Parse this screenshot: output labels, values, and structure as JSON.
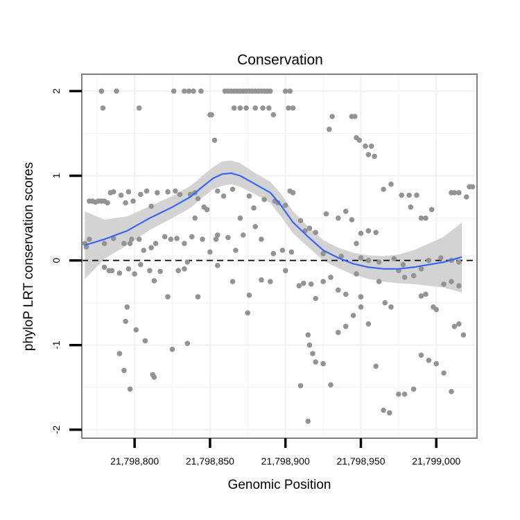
{
  "chart_data": {
    "type": "scatter",
    "title": "Conservation",
    "xlabel": "Genomic Position",
    "ylabel": "phyloP LRT conservation scores",
    "xlim": [
      21798765,
      21799027
    ],
    "ylim": [
      -2.1,
      2.2
    ],
    "x_ticks": [
      {
        "value": 21798800,
        "label": "21,798,800"
      },
      {
        "value": 21798850,
        "label": "21,798,850"
      },
      {
        "value": 21798900,
        "label": "21,798,900"
      },
      {
        "value": 21798950,
        "label": "21,798,950"
      },
      {
        "value": 21799000,
        "label": "21,799,000"
      }
    ],
    "y_ticks": [
      {
        "value": -2,
        "label": "-2"
      },
      {
        "value": -1,
        "label": "-1"
      },
      {
        "value": 0,
        "label": "0"
      },
      {
        "value": 1,
        "label": "1"
      },
      {
        "value": 2,
        "label": "2"
      }
    ],
    "reference_line": {
      "y": 0,
      "style": "dashed"
    },
    "colors": {
      "points": "#939393",
      "smooth": "#3366ff",
      "ribbon": "#d3d3d3",
      "grid": "#f2f2f2",
      "border": "#7f7f7f"
    },
    "points": [
      [
        21798778,
        2.0
      ],
      [
        21798779,
        1.8
      ],
      [
        21798788,
        2.0
      ],
      [
        21798803,
        1.8
      ],
      [
        21798826,
        2.0
      ],
      [
        21798833,
        2.0
      ],
      [
        21798836,
        2.0
      ],
      [
        21798839,
        2.0
      ],
      [
        21798844,
        2.0
      ],
      [
        21798850,
        1.72
      ],
      [
        21798851,
        1.72
      ],
      [
        21798853,
        1.42
      ],
      [
        21798860,
        2.0
      ],
      [
        21798862,
        2.0
      ],
      [
        21798864,
        2.0
      ],
      [
        21798866,
        2.0
      ],
      [
        21798868,
        2.0
      ],
      [
        21798870,
        2.0
      ],
      [
        21798872,
        2.0
      ],
      [
        21798874,
        2.0
      ],
      [
        21798876,
        2.0
      ],
      [
        21798878,
        2.0
      ],
      [
        21798880,
        2.0
      ],
      [
        21798882,
        2.0
      ],
      [
        21798884,
        2.0
      ],
      [
        21798886,
        2.0
      ],
      [
        21798888,
        2.0
      ],
      [
        21798890,
        2.0
      ],
      [
        21798866,
        1.8
      ],
      [
        21798870,
        1.8
      ],
      [
        21798874,
        1.8
      ],
      [
        21798880,
        1.8
      ],
      [
        21798885,
        1.8
      ],
      [
        21798889,
        1.8
      ],
      [
        21798892,
        1.72
      ],
      [
        21798900,
        2.0
      ],
      [
        21798903,
        2.0
      ],
      [
        21798902,
        1.8
      ],
      [
        21798905,
        1.8
      ],
      [
        21798929,
        1.55
      ],
      [
        21798931,
        1.7
      ],
      [
        21798944,
        1.7
      ],
      [
        21798946,
        1.7
      ],
      [
        21798947,
        1.45
      ],
      [
        21798949,
        1.42
      ],
      [
        21798953,
        1.35
      ],
      [
        21798957,
        1.35
      ],
      [
        21798955,
        1.25
      ],
      [
        21798959,
        1.23
      ],
      [
        21798770,
        0.7
      ],
      [
        21798772,
        0.7
      ],
      [
        21798774,
        0.69
      ],
      [
        21798776,
        0.7
      ],
      [
        21798778,
        0.7
      ],
      [
        21798780,
        0.7
      ],
      [
        21798782,
        0.68
      ],
      [
        21798784,
        0.8
      ],
      [
        21798786,
        0.81
      ],
      [
        21798791,
        0.77
      ],
      [
        21798794,
        0.68
      ],
      [
        21798796,
        0.81
      ],
      [
        21798799,
        0.7
      ],
      [
        21798804,
        0.78
      ],
      [
        21798808,
        0.82
      ],
      [
        21798811,
        0.64
      ],
      [
        21798815,
        0.8
      ],
      [
        21798822,
        0.81
      ],
      [
        21798827,
        0.82
      ],
      [
        21798830,
        0.78
      ],
      [
        21798837,
        0.78
      ],
      [
        21798840,
        0.8
      ],
      [
        21798842,
        0.73
      ],
      [
        21798846,
        0.63
      ],
      [
        21798848,
        0.6
      ],
      [
        21798855,
        0.82
      ],
      [
        21798859,
        0.76
      ],
      [
        21798865,
        0.84
      ],
      [
        21798870,
        0.5
      ],
      [
        21798876,
        0.76
      ],
      [
        21798879,
        0.62
      ],
      [
        21798886,
        0.72
      ],
      [
        21798893,
        0.7
      ],
      [
        21798895,
        0.68
      ],
      [
        21798900,
        0.65
      ],
      [
        21798903,
        0.82
      ],
      [
        21798905,
        0.8
      ],
      [
        21798910,
        0.47
      ],
      [
        21798916,
        0.38
      ],
      [
        21798920,
        0.33
      ],
      [
        21798927,
        0.55
      ],
      [
        21798935,
        0.5
      ],
      [
        21798940,
        0.58
      ],
      [
        21798944,
        0.48
      ],
      [
        21798950,
        0.32
      ],
      [
        21798955,
        0.35
      ],
      [
        21798960,
        0.33
      ],
      [
        21798965,
        0.84
      ],
      [
        21798970,
        0.9
      ],
      [
        21798977,
        0.77
      ],
      [
        21798982,
        0.77
      ],
      [
        21798983,
        0.63
      ],
      [
        21798987,
        0.77
      ],
      [
        21798990,
        0.5
      ],
      [
        21798993,
        0.5
      ],
      [
        21798997,
        0.6
      ],
      [
        21799010,
        0.8
      ],
      [
        21799012,
        0.8
      ],
      [
        21799015,
        0.8
      ],
      [
        21799020,
        0.75
      ],
      [
        21799022,
        0.87
      ],
      [
        21799024,
        0.87
      ],
      [
        21798767,
        0.2
      ],
      [
        21798768,
        0.16
      ],
      [
        21798770,
        0.25
      ],
      [
        21798780,
        0.2
      ],
      [
        21798786,
        0.26
      ],
      [
        21798793,
        0.2
      ],
      [
        21798797,
        0.2
      ],
      [
        21798798,
        0.25
      ],
      [
        21798803,
        0.25
      ],
      [
        21798806,
        0.12
      ],
      [
        21798811,
        0.15
      ],
      [
        21798814,
        0.2
      ],
      [
        21798820,
        0.28
      ],
      [
        21798824,
        0.25
      ],
      [
        21798828,
        0.26
      ],
      [
        21798833,
        0.2
      ],
      [
        21798838,
        0.28
      ],
      [
        21798840,
        0.5
      ],
      [
        21798845,
        0.25
      ],
      [
        21798850,
        0.1
      ],
      [
        21798854,
        0.25
      ],
      [
        21798855,
        0.3
      ],
      [
        21798862,
        0.27
      ],
      [
        21798867,
        0.12
      ],
      [
        21798872,
        0.3
      ],
      [
        21798880,
        0.4
      ],
      [
        21798884,
        0.25
      ],
      [
        21798892,
        0.08
      ],
      [
        21798898,
        0.12
      ],
      [
        21798904,
        0.1
      ],
      [
        21798913,
        0.35
      ],
      [
        21798925,
        0.08
      ],
      [
        21798937,
        0.05
      ],
      [
        21798947,
        0.2
      ],
      [
        21798950,
        0.03
      ],
      [
        21798955,
        0.0
      ],
      [
        21798962,
        -0.02
      ],
      [
        21798972,
        0.02
      ],
      [
        21798978,
        -0.05
      ],
      [
        21798990,
        -0.1
      ],
      [
        21798995,
        0.0
      ],
      [
        21799003,
        0.03
      ],
      [
        21799010,
        0.0
      ],
      [
        21799015,
        -0.02
      ],
      [
        21798780,
        -0.08
      ],
      [
        21798783,
        -0.12
      ],
      [
        21798785,
        -0.12
      ],
      [
        21798790,
        -0.15
      ],
      [
        21798796,
        -0.1
      ],
      [
        21798800,
        -0.16
      ],
      [
        21798804,
        -0.05
      ],
      [
        21798810,
        -0.12
      ],
      [
        21798813,
        -0.24
      ],
      [
        21798817,
        -0.13
      ],
      [
        21798822,
        -0.43
      ],
      [
        21798829,
        -0.12
      ],
      [
        21798833,
        -0.1
      ],
      [
        21798835,
        -0.02
      ],
      [
        21798842,
        -0.43
      ],
      [
        21798855,
        -0.06
      ],
      [
        21798865,
        -0.25
      ],
      [
        21798876,
        -0.41
      ],
      [
        21798884,
        -0.23
      ],
      [
        21798890,
        -0.25
      ],
      [
        21798900,
        -0.12
      ],
      [
        21798909,
        -0.3
      ],
      [
        21798912,
        -0.27
      ],
      [
        21798917,
        -0.28
      ],
      [
        21798920,
        -0.45
      ],
      [
        21798925,
        -0.25
      ],
      [
        21798930,
        -0.2
      ],
      [
        21798935,
        -0.35
      ],
      [
        21798940,
        -0.4
      ],
      [
        21798947,
        -0.16
      ],
      [
        21798950,
        -0.43
      ],
      [
        21798962,
        -0.25
      ],
      [
        21798966,
        -0.5
      ],
      [
        21798970,
        -0.55
      ],
      [
        21798975,
        -0.12
      ],
      [
        21798979,
        -0.2
      ],
      [
        21798985,
        -0.18
      ],
      [
        21798990,
        -0.42
      ],
      [
        21798993,
        -0.4
      ],
      [
        21798998,
        -0.55
      ],
      [
        21799000,
        -0.58
      ],
      [
        21799005,
        -0.28
      ],
      [
        21799010,
        -0.25
      ],
      [
        21799015,
        -0.3
      ],
      [
        21798795,
        -0.55
      ],
      [
        21798794,
        -0.72
      ],
      [
        21798801,
        -0.82
      ],
      [
        21798807,
        -0.95
      ],
      [
        21798790,
        -1.1
      ],
      [
        21798793,
        -1.3
      ],
      [
        21798797,
        -1.52
      ],
      [
        21798812,
        -1.35
      ],
      [
        21798813,
        -1.38
      ],
      [
        21798825,
        -1.05
      ],
      [
        21798835,
        -0.98
      ],
      [
        21798875,
        -0.62
      ],
      [
        21798910,
        -1.48
      ],
      [
        21798915,
        -0.88
      ],
      [
        21798916,
        -1.0
      ],
      [
        21798918,
        -1.1
      ],
      [
        21798920,
        -1.2
      ],
      [
        21798925,
        -1.22
      ],
      [
        21798930,
        -1.47
      ],
      [
        21798935,
        -0.85
      ],
      [
        21798940,
        -0.78
      ],
      [
        21798945,
        -0.65
      ],
      [
        21798950,
        -0.55
      ],
      [
        21798955,
        -0.75
      ],
      [
        21798960,
        -1.25
      ],
      [
        21798965,
        -1.77
      ],
      [
        21798969,
        -1.8
      ],
      [
        21798975,
        -1.58
      ],
      [
        21798979,
        -1.58
      ],
      [
        21798985,
        -1.52
      ],
      [
        21798990,
        -1.12
      ],
      [
        21798995,
        -1.18
      ],
      [
        21799000,
        -1.22
      ],
      [
        21799005,
        -1.33
      ],
      [
        21799010,
        -1.55
      ],
      [
        21799012,
        -0.78
      ],
      [
        21799015,
        -0.75
      ],
      [
        21799018,
        -0.88
      ],
      [
        21798915,
        -1.9
      ]
    ],
    "smooth": {
      "x": [
        21798767,
        21798780,
        21798795,
        21798810,
        21798825,
        21798837,
        21798845,
        21798852,
        21798858,
        21798864,
        21798870,
        21798880,
        21798890,
        21798897,
        21798905,
        21798915,
        21798925,
        21798935,
        21798945,
        21798955,
        21798965,
        21798975,
        21798985,
        21798995,
        21799005,
        21799017
      ],
      "y": [
        0.18,
        0.25,
        0.35,
        0.5,
        0.63,
        0.75,
        0.87,
        0.97,
        1.02,
        1.03,
        1.0,
        0.9,
        0.8,
        0.65,
        0.45,
        0.28,
        0.12,
        0.03,
        -0.04,
        -0.08,
        -0.1,
        -0.1,
        -0.08,
        -0.05,
        -0.02,
        0.04
      ],
      "lower": [
        -0.22,
        0.02,
        0.18,
        0.36,
        0.5,
        0.62,
        0.74,
        0.84,
        0.88,
        0.9,
        0.87,
        0.78,
        0.68,
        0.52,
        0.32,
        0.16,
        0.0,
        -0.09,
        -0.17,
        -0.22,
        -0.25,
        -0.27,
        -0.28,
        -0.3,
        -0.32,
        -0.38
      ],
      "upper": [
        0.58,
        0.48,
        0.52,
        0.64,
        0.76,
        0.88,
        1.0,
        1.1,
        1.17,
        1.18,
        1.15,
        1.03,
        0.93,
        0.79,
        0.58,
        0.4,
        0.24,
        0.15,
        0.09,
        0.06,
        0.05,
        0.07,
        0.12,
        0.2,
        0.28,
        0.45
      ]
    }
  }
}
